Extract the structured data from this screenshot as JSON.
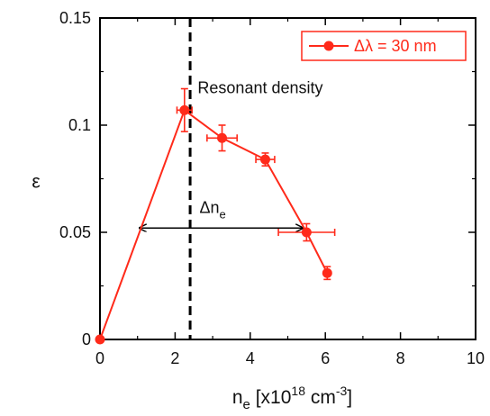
{
  "chart_data": {
    "type": "line",
    "xlabel": {
      "main": "n",
      "sub": "e",
      "rest1": " [x10",
      "sup1": "18",
      "rest2": " cm",
      "sup2": "-3",
      "rest3": "]"
    },
    "ylabel": "ε",
    "xlim": [
      0,
      10
    ],
    "ylim": [
      0,
      0.15
    ],
    "xticks": [
      0,
      2,
      4,
      6,
      8,
      10
    ],
    "xtick_labels": [
      "0",
      "2",
      "4",
      "6",
      "8",
      "10"
    ],
    "yticks": [
      0,
      0.05,
      0.1,
      0.15
    ],
    "ytick_labels": [
      "0",
      "0.05",
      "0.1",
      "0.15"
    ],
    "grid": false,
    "legend_position": "top-right",
    "series": [
      {
        "name": "Δλ = 30 nm",
        "color": "#ff2a1a",
        "x": [
          0,
          2.25,
          3.25,
          4.4,
          5.5,
          6.05
        ],
        "y": [
          0,
          0.107,
          0.094,
          0.084,
          0.05,
          0.031
        ],
        "x_err": [
          0,
          0.2,
          0.4,
          0.25,
          0.75,
          0
        ],
        "y_err": [
          0,
          0.01,
          0.006,
          0.003,
          0.004,
          0.003
        ]
      }
    ],
    "annotations": [
      {
        "type": "vline",
        "x": 2.4,
        "style": "dashed",
        "color": "#000000"
      },
      {
        "type": "text",
        "text": "Resonant density",
        "x": 2.6,
        "y": 0.115
      },
      {
        "type": "double-arrow",
        "x_start": 1.05,
        "x_end": 5.4,
        "y": 0.052,
        "color": "#000000"
      },
      {
        "type": "text",
        "text_main": "Δn",
        "text_sub": "e",
        "x": 2.65,
        "y": 0.059
      }
    ]
  }
}
